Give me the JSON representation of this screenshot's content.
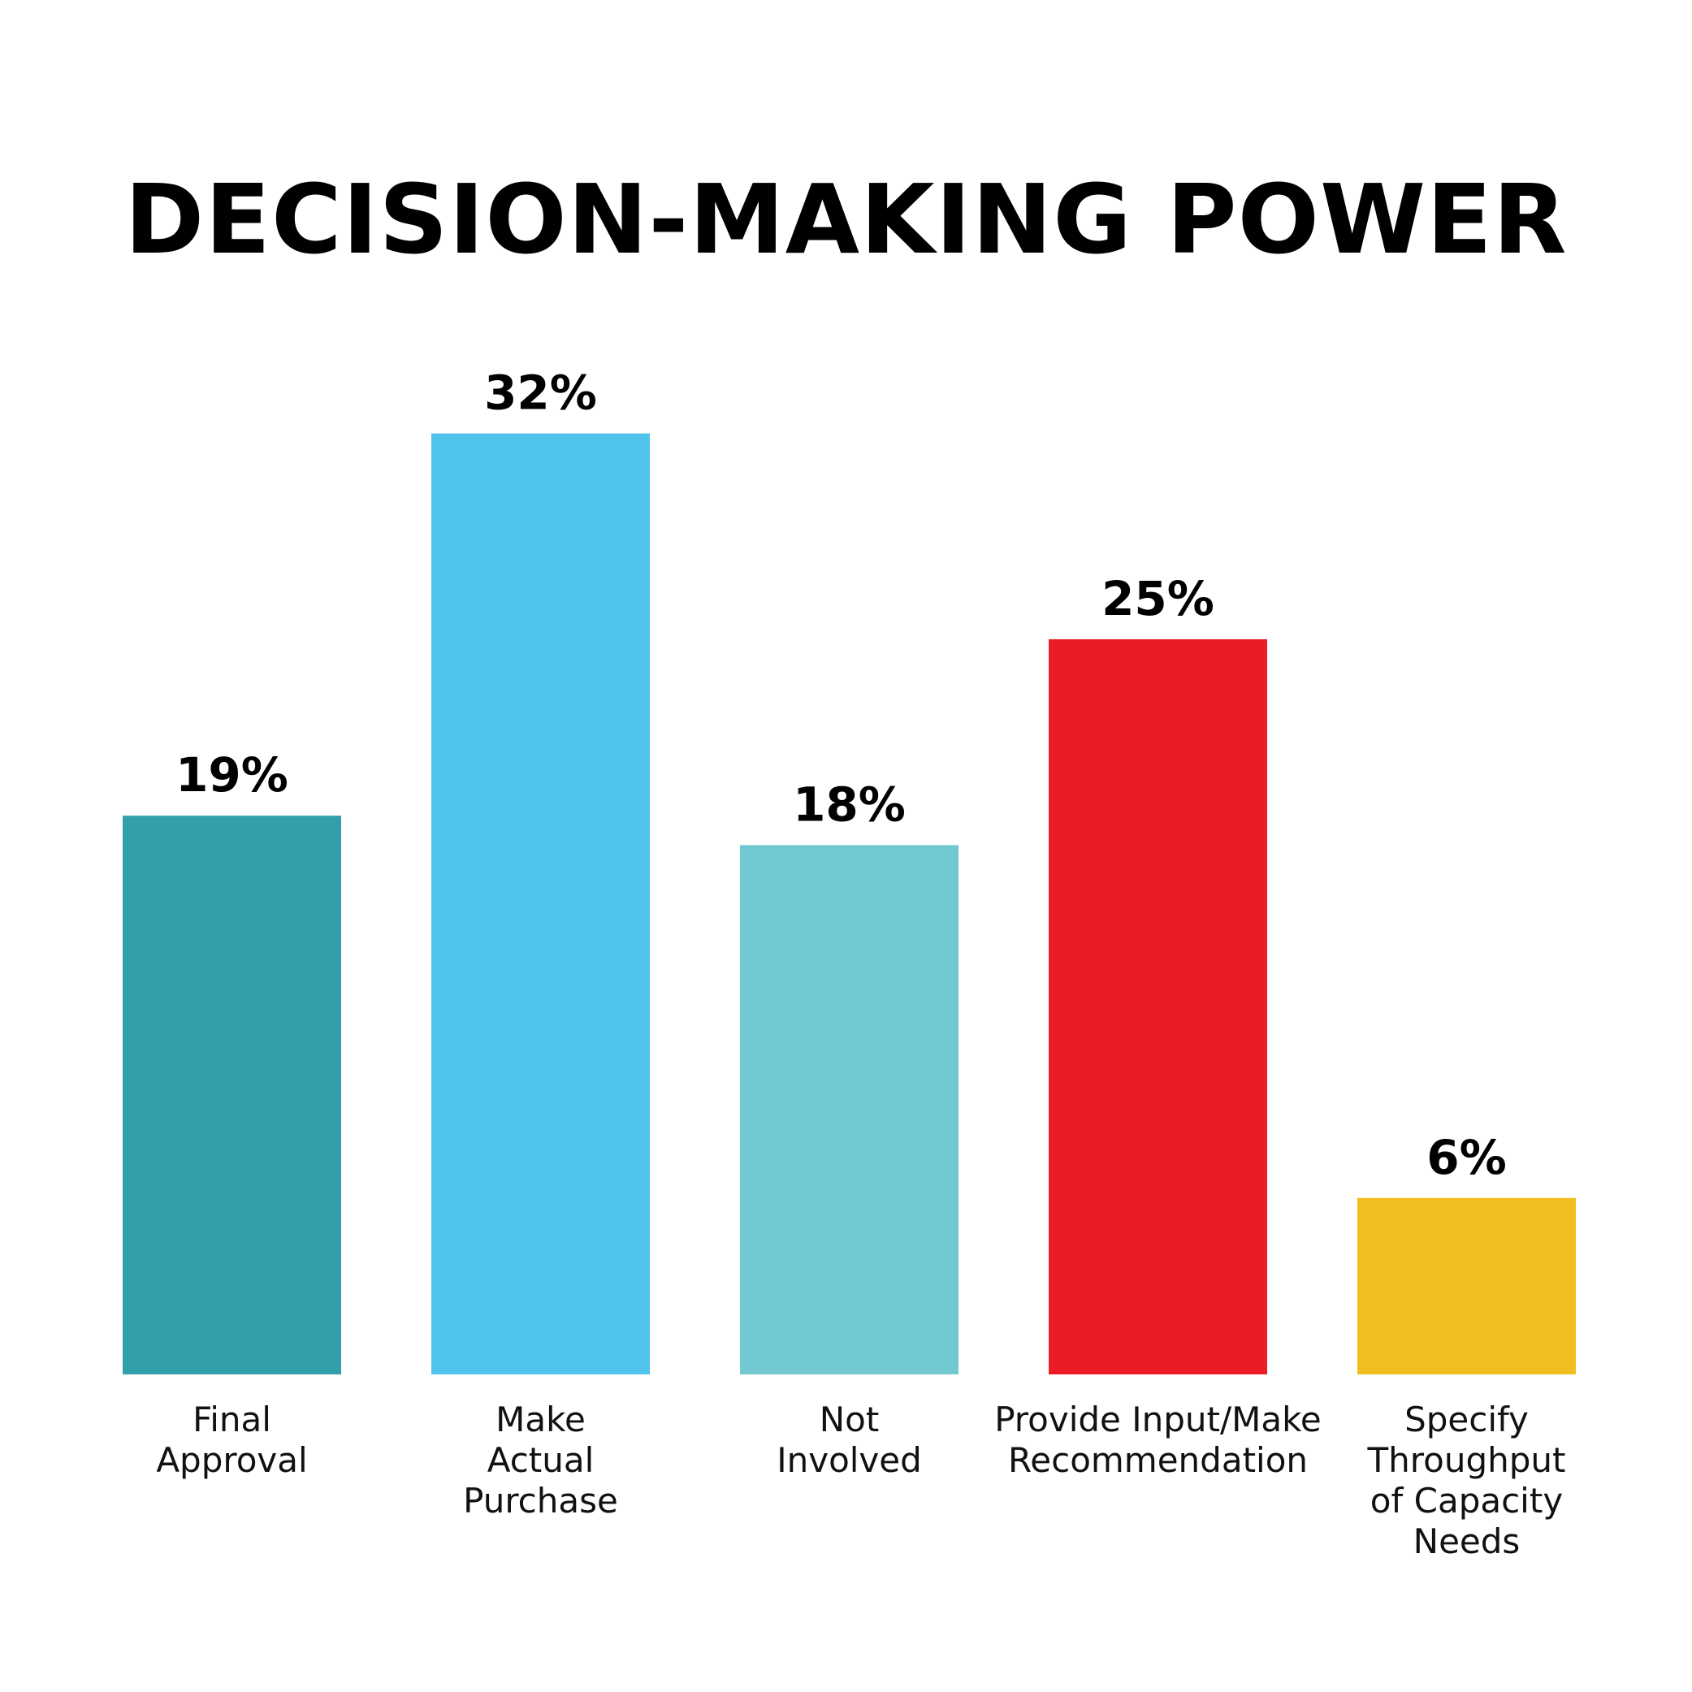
{
  "chart_data": {
    "type": "bar",
    "title": "DECISION-MAKING POWER",
    "categories": [
      [
        "Final",
        "Approval"
      ],
      [
        "Make",
        "Actual",
        "Purchase"
      ],
      [
        "Not",
        "Involved"
      ],
      [
        "Provide Input/Make",
        "Recommendation"
      ],
      [
        "Specify",
        "Throughput",
        "of Capacity",
        "Needs"
      ]
    ],
    "values": [
      19,
      32,
      18,
      25,
      6
    ],
    "value_labels": [
      "19%",
      "32%",
      "18%",
      "25%",
      "6%"
    ],
    "colors": [
      "#32A0AA",
      "#50C4ED",
      "#72C8D0",
      "#EC1C27",
      "#F0BE1E"
    ],
    "unit": "%",
    "xlabel": "",
    "ylabel": "",
    "grid": false,
    "legend": "none"
  }
}
